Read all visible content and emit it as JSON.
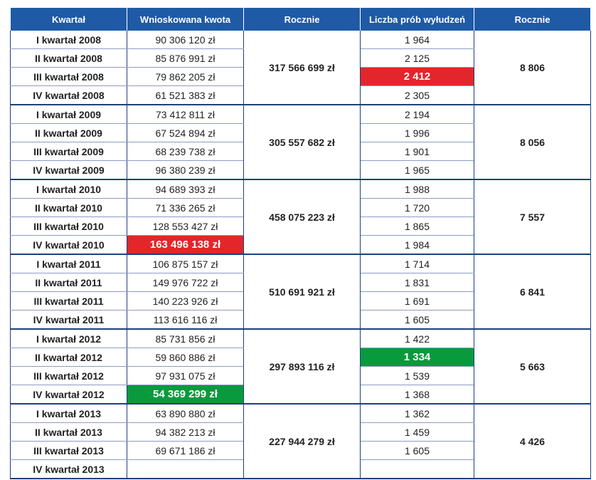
{
  "headers": [
    "Kwartał",
    "Wnioskowana kwota",
    "Rocznie",
    "Liczba prób wyłudzeń",
    "Rocznie"
  ],
  "years": [
    {
      "annual_amount": "317 566 699 zł",
      "annual_count": "8 806",
      "rows": [
        {
          "quarter": "I kwartał 2008",
          "amount": "90 306 120 zł",
          "count": "1 964"
        },
        {
          "quarter": "II kwartał 2008",
          "amount": "85 876 991 zł",
          "count": "2 125"
        },
        {
          "quarter": "III kwartał 2008",
          "amount": "79 862 205 zł",
          "count": "2 412"
        },
        {
          "quarter": "IV kwartał 2008",
          "amount": "61 521 383 zł",
          "count": "2 305"
        }
      ]
    },
    {
      "annual_amount": "305 557 682 zł",
      "annual_count": "8 056",
      "rows": [
        {
          "quarter": "I kwartał 2009",
          "amount": "73 412 811 zł",
          "count": "2 194"
        },
        {
          "quarter": "II kwartał 2009",
          "amount": "67 524 894 zł",
          "count": "1 996"
        },
        {
          "quarter": "III kwartał 2009",
          "amount": "68 239 738 zł",
          "count": "1 901"
        },
        {
          "quarter": "IV kwartał 2009",
          "amount": "96 380 239 zł",
          "count": "1 965"
        }
      ]
    },
    {
      "annual_amount": "458 075 223 zł",
      "annual_count": "7 557",
      "rows": [
        {
          "quarter": "I kwartał 2010",
          "amount": "94 689 393 zł",
          "count": "1 988"
        },
        {
          "quarter": "II kwartał 2010",
          "amount": "71 336 265 zł",
          "count": "1 720"
        },
        {
          "quarter": "III kwartał 2010",
          "amount": "128 553 427 zł",
          "count": "1 865"
        },
        {
          "quarter": "IV kwartał 2010",
          "amount": "163 496 138 zł",
          "count": "1 984"
        }
      ]
    },
    {
      "annual_amount": "510 691 921 zł",
      "annual_count": "6 841",
      "rows": [
        {
          "quarter": "I kwartał 2011",
          "amount": "106 875 157 zł",
          "count": "1 714"
        },
        {
          "quarter": "II kwartał 2011",
          "amount": "149 976 722 zł",
          "count": "1 831"
        },
        {
          "quarter": "III kwartał 2011",
          "amount": "140 223 926 zł",
          "count": "1 691"
        },
        {
          "quarter": "IV kwartał 2011",
          "amount": "113 616 116 zł",
          "count": "1 605"
        }
      ]
    },
    {
      "annual_amount": "297 893 116 zł",
      "annual_count": "5 663",
      "rows": [
        {
          "quarter": "I kwartał 2012",
          "amount": "85 731 856 zł",
          "count": "1 422"
        },
        {
          "quarter": "II kwartał 2012",
          "amount": "59 860 886 zł",
          "count": "1 334"
        },
        {
          "quarter": "III kwartał 2012",
          "amount": "97 931 075 zł",
          "count": "1 539"
        },
        {
          "quarter": "IV kwartał 2012",
          "amount": "54 369 299 zł",
          "count": "1 368"
        }
      ]
    },
    {
      "annual_amount": "227 944 279 zł",
      "annual_count": "4 426",
      "rows": [
        {
          "quarter": "I kwartał 2013",
          "amount": "63 890 880 zł",
          "count": "1 362"
        },
        {
          "quarter": "II kwartał 2013",
          "amount": "94 382 213 zł",
          "count": "1 459"
        },
        {
          "quarter": "III kwartał 2013",
          "amount": "69 671 186 zł",
          "count": "1 605"
        },
        {
          "quarter": "IV kwartał 2013",
          "amount": "",
          "count": ""
        }
      ]
    }
  ],
  "highlights": {
    "max_amount": "163 496 138 zł",
    "min_amount": "54 369 299 zł",
    "max_count": "2 412",
    "min_count": "1 334",
    "red": "#e3262b",
    "green": "#0a9a3e",
    "header_bg": "#1f5aa6"
  }
}
